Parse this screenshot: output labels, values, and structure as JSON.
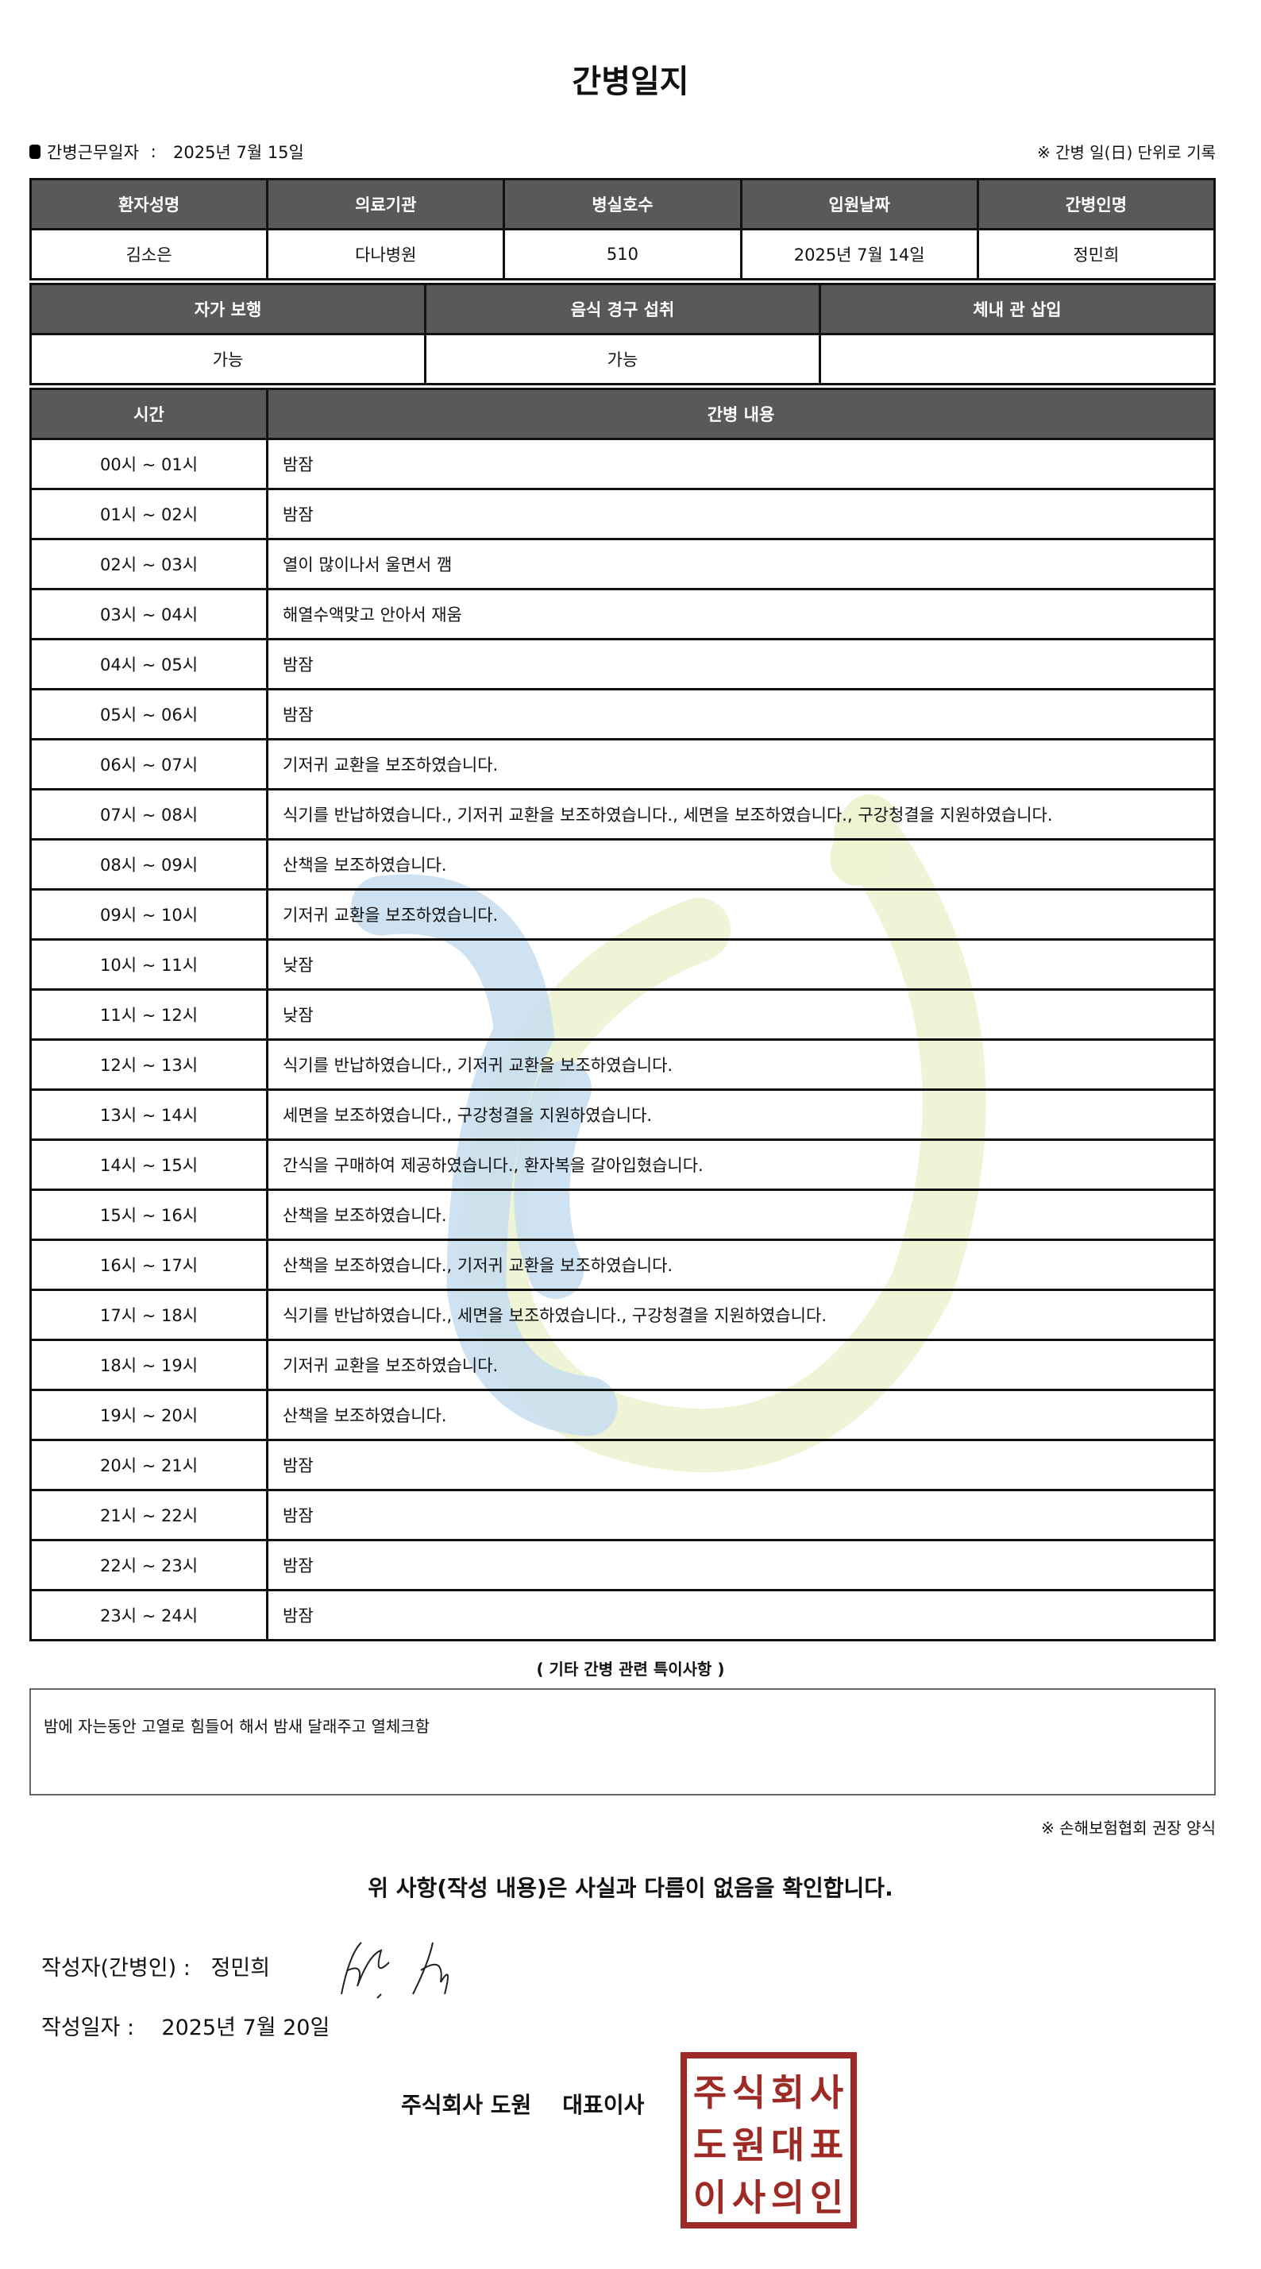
{
  "title": "간병일지",
  "work_date_label": "간병근무일자",
  "work_date": "2025년 7월 15일",
  "record_note": "※ 간병 일(日) 단위로 기록",
  "patient_table": {
    "headers": [
      "환자성명",
      "의료기관",
      "병실호수",
      "입원날짜",
      "간병인명"
    ],
    "values": [
      "김소은",
      "다나병원",
      "510",
      "2025년 7월 14일",
      "정민희"
    ]
  },
  "status_table": {
    "headers": [
      "자가 보행",
      "음식 경구 섭취",
      "체내 관 삽입"
    ],
    "values": [
      "가능",
      "가능",
      ""
    ]
  },
  "log_table": {
    "headers": [
      "시간",
      "간병 내용"
    ],
    "rows": [
      {
        "time": "00시 ~ 01시",
        "content": "밤잠"
      },
      {
        "time": "01시 ~ 02시",
        "content": "밤잠"
      },
      {
        "time": "02시 ~ 03시",
        "content": "열이 많이나서 울면서 깸"
      },
      {
        "time": "03시 ~ 04시",
        "content": "해열수액맞고 안아서 재움"
      },
      {
        "time": "04시 ~ 05시",
        "content": "밤잠"
      },
      {
        "time": "05시 ~ 06시",
        "content": "밤잠"
      },
      {
        "time": "06시 ~ 07시",
        "content": "기저귀 교환을 보조하였습니다."
      },
      {
        "time": "07시 ~ 08시",
        "content": "식기를 반납하였습니다., 기저귀 교환을 보조하였습니다., 세면을 보조하였습니다., 구강청결을 지원하였습니다."
      },
      {
        "time": "08시 ~ 09시",
        "content": "산책을 보조하였습니다."
      },
      {
        "time": "09시 ~ 10시",
        "content": "기저귀 교환을 보조하였습니다."
      },
      {
        "time": "10시 ~ 11시",
        "content": "낮잠"
      },
      {
        "time": "11시 ~ 12시",
        "content": "낮잠"
      },
      {
        "time": "12시 ~ 13시",
        "content": "식기를 반납하였습니다., 기저귀 교환을 보조하였습니다."
      },
      {
        "time": "13시 ~ 14시",
        "content": "세면을 보조하였습니다., 구강청결을 지원하였습니다."
      },
      {
        "time": "14시 ~ 15시",
        "content": "간식을 구매하여 제공하였습니다., 환자복을 갈아입혔습니다."
      },
      {
        "time": "15시 ~ 16시",
        "content": "산책을 보조하였습니다."
      },
      {
        "time": "16시 ~ 17시",
        "content": "산책을 보조하였습니다., 기저귀 교환을 보조하였습니다."
      },
      {
        "time": "17시 ~ 18시",
        "content": "식기를 반납하였습니다., 세면을 보조하였습니다., 구강청결을 지원하였습니다."
      },
      {
        "time": "18시 ~ 19시",
        "content": "기저귀 교환을 보조하였습니다."
      },
      {
        "time": "19시 ~ 20시",
        "content": "산책을 보조하였습니다."
      },
      {
        "time": "20시 ~ 21시",
        "content": "밤잠"
      },
      {
        "time": "21시 ~ 22시",
        "content": "밤잠"
      },
      {
        "time": "22시 ~ 23시",
        "content": "밤잠"
      },
      {
        "time": "23시 ~ 24시",
        "content": "밤잠"
      }
    ]
  },
  "special_notes_heading": "( 기타 간병 관련 특이사항 )",
  "special_notes": "밤에 자는동안 고열로 힘들어 해서 밤새 달래주고 열체크함",
  "association_note": "※ 손해보험협회 권장 양식",
  "confirmation": "위 사항(작성 내용)은 사실과 다름이 없음을 확인합니다.",
  "writer_label": "작성자(간병인) :",
  "writer_name": "정민희",
  "written_date_label": "작성일자 :",
  "written_date": "2025년 7월 20일",
  "company": "주식회사 도원    대표이사",
  "seal_text": "주식회사도원대표이사의인",
  "colors": {
    "header_bg": "#595959",
    "seal": "#9e2a26",
    "watermark_blue": "#c9dff0",
    "watermark_yellow": "#eef3d2"
  }
}
